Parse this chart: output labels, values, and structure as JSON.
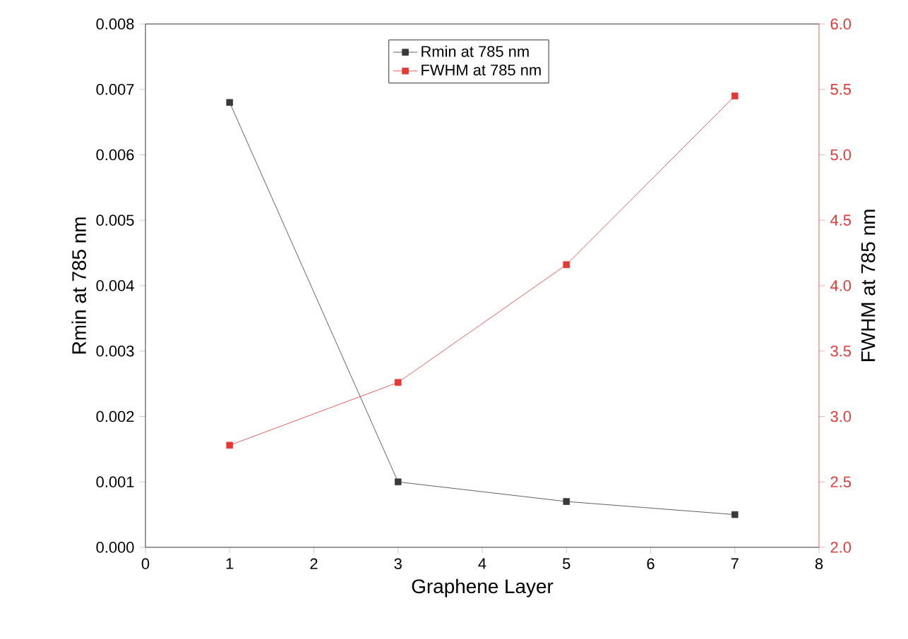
{
  "chart_data": {
    "type": "line",
    "xlabel": "Graphene Layer",
    "ylabel": "Rmin at 785 nm",
    "y2label": "FWHM at 785 nm",
    "x": [
      1,
      3,
      5,
      7
    ],
    "series": [
      {
        "name": "Rmin at 785 nm",
        "color": "#3a3a3a",
        "values": [
          0.0068,
          0.001,
          0.0007,
          0.0005
        ]
      },
      {
        "name": "FWHM at 785 nm",
        "color": "#e53935",
        "values": [
          2.78,
          3.26,
          4.16,
          5.45
        ],
        "axis": "y2"
      }
    ],
    "xlim": [
      0,
      8
    ],
    "xticks": [
      0,
      1,
      2,
      3,
      4,
      5,
      6,
      7,
      8
    ],
    "ylim": [
      0,
      0.008
    ],
    "yticks": [
      {
        "value": 0,
        "label": "0.000"
      },
      {
        "value": 0.001,
        "label": "0.001"
      },
      {
        "value": 0.002,
        "label": "0.002"
      },
      {
        "value": 0.003,
        "label": "0.003"
      },
      {
        "value": 0.004,
        "label": "0.004"
      },
      {
        "value": 0.005,
        "label": "0.005"
      },
      {
        "value": 0.006,
        "label": "0.006"
      },
      {
        "value": 0.007,
        "label": "0.007"
      },
      {
        "value": 0.008,
        "label": "0.008"
      }
    ],
    "y2lim": [
      2,
      6
    ],
    "y2ticks": [
      {
        "value": 2,
        "label": "2.0"
      },
      {
        "value": 2.5,
        "label": "2.5"
      },
      {
        "value": 3,
        "label": "3.0"
      },
      {
        "value": 3.5,
        "label": "3.5"
      },
      {
        "value": 4,
        "label": "4.0"
      },
      {
        "value": 4.5,
        "label": "4.5"
      },
      {
        "value": 5,
        "label": "5.0"
      },
      {
        "value": 5.5,
        "label": "5.5"
      },
      {
        "value": 6,
        "label": "6.0"
      }
    ],
    "legend": "top",
    "marker": "square",
    "line_style": "solid",
    "grid": false
  }
}
